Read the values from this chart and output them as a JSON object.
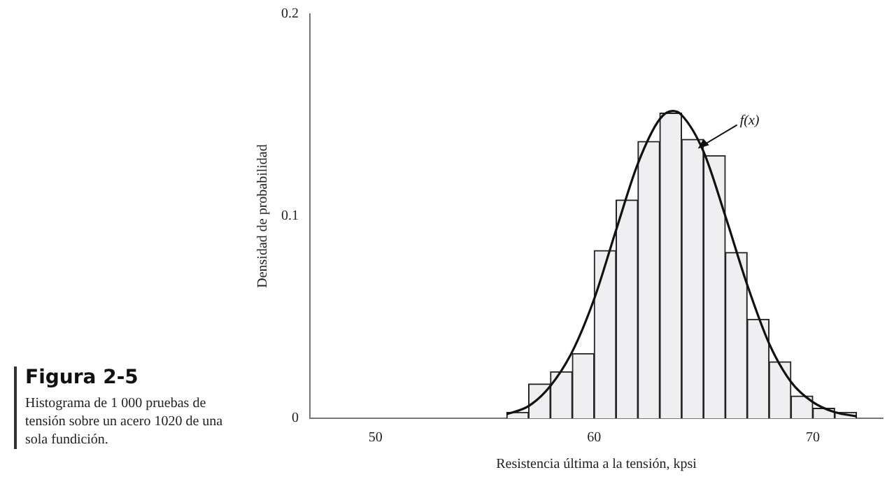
{
  "chart_data": {
    "type": "histogram",
    "title": "Figura 2-5",
    "subtitle": "Histograma de 1 000 pruebas de tensión sobre un acero 1020 de una sola fundición.",
    "xlabel": "Resistencia última a la tensión, kpsi",
    "ylabel": "Densidad de probabilidad",
    "bins": [
      56,
      57,
      58,
      59,
      60,
      61,
      62,
      63,
      64,
      65,
      66,
      67,
      68,
      69,
      70,
      71,
      72
    ],
    "series": [
      {
        "type": "histogram",
        "color": "#efeff1",
        "values": [
          0.003,
          0.017,
          0.023,
          0.032,
          0.083,
          0.108,
          0.137,
          0.151,
          0.138,
          0.13,
          0.082,
          0.049,
          0.028,
          0.011,
          0.005,
          0.003
        ]
      },
      {
        "type": "line",
        "name": "f(x)",
        "color": "#111111",
        "x": [
          56,
          57,
          58,
          59,
          60,
          61,
          62,
          63,
          63.6,
          64,
          65,
          66,
          67,
          68,
          69,
          70,
          71,
          72
        ],
        "values": [
          0.002,
          0.006,
          0.016,
          0.033,
          0.059,
          0.093,
          0.126,
          0.148,
          0.152,
          0.15,
          0.132,
          0.1,
          0.066,
          0.037,
          0.018,
          0.008,
          0.003,
          0.001
        ]
      }
    ],
    "xlim": [
      47,
      73.2
    ],
    "xticks": [
      50,
      60,
      70
    ],
    "ylim": [
      0,
      0.2
    ],
    "yticks": [
      0,
      0.1,
      0.2
    ],
    "grid": false,
    "legend": false
  }
}
